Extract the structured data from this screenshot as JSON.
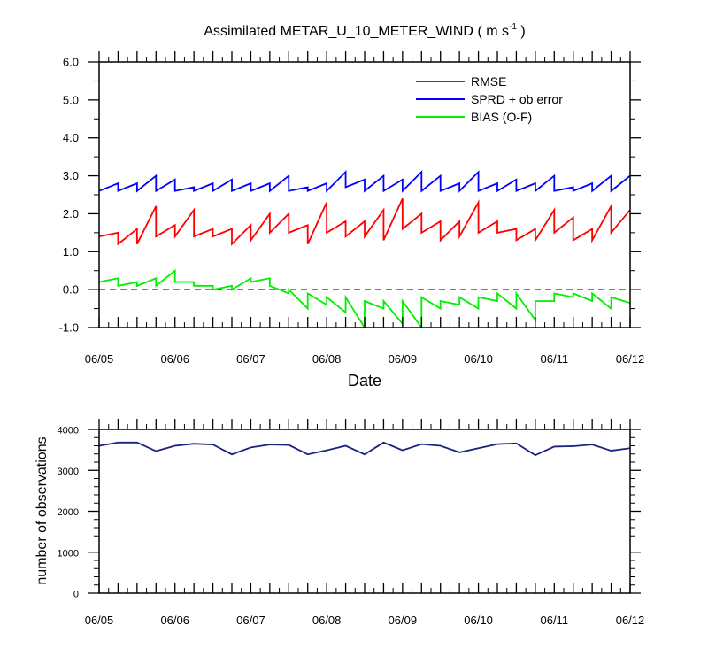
{
  "chart_data": [
    {
      "type": "line",
      "title": "Assimilated METAR_U_10_METER_WIND",
      "title_unit": {
        "prefix": "( m s",
        "superscript": "-1",
        "suffix": " )"
      },
      "xlabel": "Date",
      "ylabel": "",
      "xlim": [
        0,
        28
      ],
      "ylim": [
        -1.0,
        6.0
      ],
      "yticks": [
        -1.0,
        0.0,
        1.0,
        2.0,
        3.0,
        4.0,
        5.0,
        6.0
      ],
      "ytick_labels": [
        "-1.0",
        "0.0",
        "1.0",
        "2.0",
        "3.0",
        "4.0",
        "5.0",
        "6.0"
      ],
      "xtick_positions": [
        0,
        4,
        8,
        12,
        16,
        20,
        24,
        28
      ],
      "xtick_labels": [
        "06/05",
        "06/06",
        "06/07",
        "06/08",
        "06/09",
        "06/10",
        "06/11",
        "06/12"
      ],
      "zero_line": "dashed",
      "legend_position": "top-right",
      "series": [
        {
          "name": "RMSE",
          "color": "#ff0000",
          "x": [
            0,
            0,
            1,
            1,
            2,
            2,
            3,
            3,
            4,
            4,
            5,
            5,
            6,
            6,
            7,
            7,
            8,
            8,
            9,
            9,
            10,
            10,
            11,
            11,
            12,
            12,
            13,
            13,
            14,
            14,
            15,
            15,
            16,
            16,
            17,
            17,
            18,
            18,
            19,
            19,
            20,
            20,
            21,
            21,
            22,
            22,
            23,
            23,
            24,
            24,
            25,
            25,
            26,
            26,
            27,
            27,
            28
          ],
          "y": [
            1.4,
            1.4,
            1.5,
            1.2,
            1.6,
            1.2,
            2.2,
            1.4,
            1.7,
            1.4,
            2.1,
            1.4,
            1.6,
            1.4,
            1.6,
            1.2,
            1.7,
            1.3,
            2.0,
            1.5,
            2.0,
            1.5,
            1.7,
            1.2,
            2.3,
            1.5,
            1.8,
            1.4,
            1.8,
            1.4,
            2.1,
            1.3,
            2.4,
            1.6,
            2.0,
            1.5,
            1.8,
            1.3,
            1.8,
            1.4,
            2.3,
            1.5,
            1.8,
            1.5,
            1.6,
            1.3,
            1.6,
            1.3,
            2.1,
            1.5,
            1.9,
            1.3,
            1.6,
            1.3,
            2.2,
            1.5,
            2.1
          ]
        },
        {
          "name": "SPRD + ob error",
          "color": "#0000ff",
          "x": [
            0,
            1,
            1,
            2,
            2,
            3,
            3,
            4,
            4,
            5,
            5,
            6,
            6,
            7,
            7,
            8,
            8,
            9,
            9,
            10,
            10,
            11,
            11,
            12,
            12,
            13,
            13,
            14,
            14,
            15,
            15,
            16,
            16,
            17,
            17,
            18,
            18,
            19,
            19,
            20,
            20,
            21,
            21,
            22,
            22,
            23,
            23,
            24,
            24,
            25,
            25,
            26,
            26,
            27,
            27,
            28
          ],
          "y": [
            2.6,
            2.8,
            2.6,
            2.8,
            2.6,
            3.0,
            2.6,
            2.9,
            2.6,
            2.7,
            2.6,
            2.8,
            2.6,
            2.9,
            2.6,
            2.8,
            2.6,
            2.8,
            2.6,
            3.0,
            2.6,
            2.7,
            2.6,
            2.8,
            2.6,
            3.1,
            2.7,
            2.9,
            2.6,
            3.0,
            2.6,
            2.9,
            2.6,
            3.1,
            2.6,
            3.0,
            2.6,
            2.8,
            2.6,
            3.1,
            2.6,
            2.8,
            2.6,
            2.9,
            2.6,
            2.8,
            2.6,
            3.0,
            2.6,
            2.7,
            2.6,
            2.8,
            2.6,
            3.0,
            2.6,
            3.0
          ]
        },
        {
          "name": "BIAS (O-F)",
          "color": "#00ee00",
          "x": [
            0,
            1,
            1,
            2,
            2,
            3,
            3,
            4,
            4,
            5,
            5,
            6,
            6,
            7,
            7,
            8,
            8,
            9,
            9,
            10,
            10,
            11,
            11,
            12,
            12,
            13,
            13,
            14,
            14,
            15,
            15,
            16,
            16,
            17,
            17,
            18,
            18,
            19,
            19,
            20,
            20,
            21,
            21,
            22,
            22,
            23,
            23,
            24,
            24,
            25,
            25,
            26,
            26,
            27,
            27,
            28
          ],
          "y": [
            0.2,
            0.3,
            0.1,
            0.2,
            0.1,
            0.3,
            0.1,
            0.5,
            0.2,
            0.2,
            0.1,
            0.1,
            0.0,
            0.1,
            0.0,
            0.3,
            0.2,
            0.3,
            0.1,
            -0.1,
            0.0,
            -0.5,
            -0.1,
            -0.4,
            -0.2,
            -0.6,
            -0.2,
            -1.0,
            -0.3,
            -0.5,
            -0.3,
            -0.9,
            -0.3,
            -1.0,
            -0.2,
            -0.5,
            -0.3,
            -0.4,
            -0.2,
            -0.5,
            -0.2,
            -0.3,
            -0.1,
            -0.5,
            -0.1,
            -0.8,
            -0.3,
            -0.3,
            -0.1,
            -0.2,
            -0.1,
            -0.3,
            -0.1,
            -0.5,
            -0.2,
            -0.35
          ]
        }
      ]
    },
    {
      "type": "line",
      "title": "",
      "xlabel": "",
      "ylabel": "number of observations",
      "xlim": [
        0,
        28
      ],
      "ylim": [
        0,
        4000
      ],
      "yticks": [
        0,
        1000,
        2000,
        3000,
        4000
      ],
      "ytick_labels": [
        "0",
        "1000",
        "2000",
        "3000",
        "4000"
      ],
      "xtick_positions": [
        0,
        4,
        8,
        12,
        16,
        20,
        24,
        28
      ],
      "xtick_labels": [
        "06/05",
        "06/06",
        "06/07",
        "06/08",
        "06/09",
        "06/10",
        "06/11",
        "06/12"
      ],
      "series": [
        {
          "color": "#1a237e",
          "x": [
            0,
            1,
            2,
            3,
            4,
            5,
            6,
            7,
            8,
            9,
            10,
            11,
            12,
            13,
            14,
            15,
            16,
            17,
            18,
            19,
            20,
            21,
            22,
            23,
            24,
            25,
            26,
            27,
            28
          ],
          "y": [
            3600,
            3680,
            3680,
            3470,
            3600,
            3650,
            3630,
            3390,
            3560,
            3630,
            3620,
            3390,
            3490,
            3600,
            3390,
            3680,
            3490,
            3640,
            3600,
            3440,
            3540,
            3640,
            3660,
            3370,
            3580,
            3590,
            3630,
            3480,
            3540
          ]
        }
      ]
    }
  ]
}
